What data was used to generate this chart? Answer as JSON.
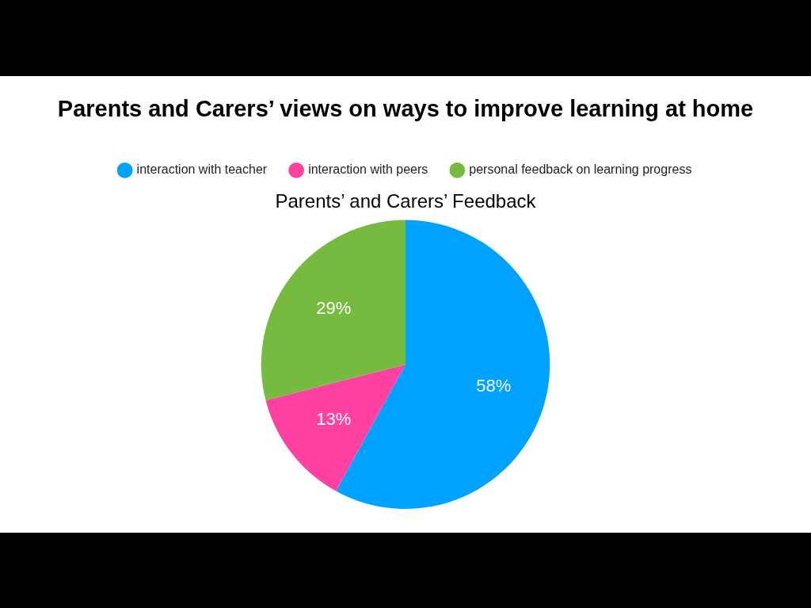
{
  "chart_data": {
    "type": "pie",
    "title": "Parents and Carers’ views on ways to improve learning at home",
    "subtitle": "Parents’ and Carers’ Feedback",
    "categories": [
      "interaction with teacher",
      "interaction with peers",
      "personal feedback on learning progress"
    ],
    "values": [
      58,
      13,
      29
    ],
    "colors": [
      "#00a2ff",
      "#ff42a1",
      "#76bb40"
    ],
    "value_labels": [
      "58%",
      "13%",
      "29%"
    ],
    "legend": "top"
  }
}
